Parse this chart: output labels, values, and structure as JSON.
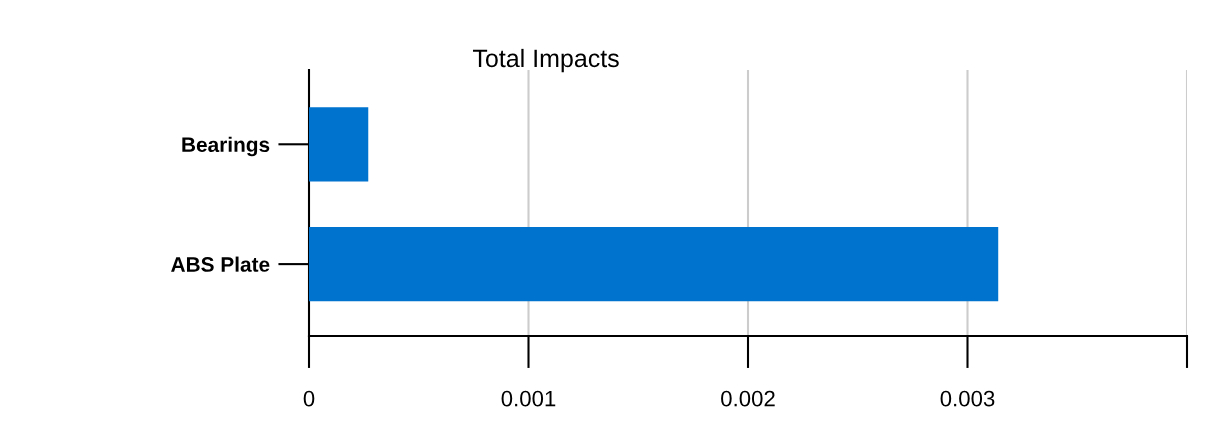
{
  "chart_data": {
    "type": "bar",
    "orientation": "horizontal",
    "title": "Total Impacts",
    "categories": [
      "Bearings",
      "ABS Plate"
    ],
    "values": [
      0.00027,
      0.00314
    ],
    "color": "#0073cf",
    "xlim": [
      0,
      0.004
    ],
    "xticks": [
      0,
      0.001,
      0.002,
      0.003,
      {
        "value": 0.004,
        "label": null
      }
    ],
    "grid": "x"
  }
}
